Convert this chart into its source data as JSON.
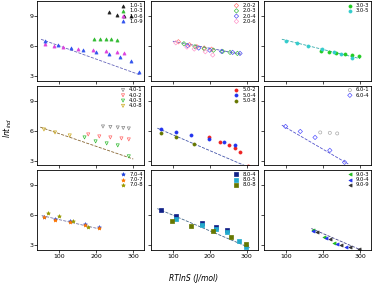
{
  "panels": [
    {
      "row": 0,
      "col": 0,
      "series": [
        {
          "label": "1.0-1",
          "color": "#222222",
          "marker": "^",
          "filled": true,
          "x": [
            235,
            255,
            275,
            295
          ],
          "y": [
            9.4,
            9.1,
            9.0,
            9.05
          ]
        },
        {
          "label": "1.0-3",
          "color": "#33bb33",
          "marker": "^",
          "filled": true,
          "x": [
            195,
            210,
            225,
            240,
            255
          ],
          "y": [
            6.75,
            6.72,
            6.7,
            6.68,
            6.65
          ]
        },
        {
          "label": "1.0-6",
          "color": "#dd44dd",
          "marker": "^",
          "filled": true,
          "x": [
            60,
            85,
            110,
            150,
            190,
            225,
            255,
            275
          ],
          "y": [
            6.2,
            6.05,
            5.9,
            5.75,
            5.65,
            5.55,
            5.45,
            5.35
          ]
        },
        {
          "label": "1.0-9",
          "color": "#3355ee",
          "marker": "^",
          "filled": true,
          "x": [
            60,
            95,
            130,
            165,
            200,
            235,
            265,
            295,
            315
          ],
          "y": [
            6.5,
            6.1,
            5.85,
            5.65,
            5.45,
            5.2,
            4.9,
            4.5,
            3.4
          ]
        },
        {
          "trend": true,
          "color": "#6666bb",
          "x": [
            50,
            320
          ],
          "y": [
            6.7,
            3.1
          ]
        }
      ],
      "xlim": [
        40,
        330
      ],
      "ylim": [
        2.5,
        10.5
      ],
      "yticks": [
        3,
        6,
        9
      ],
      "xticks": [
        100,
        200,
        300
      ],
      "show_ylabel": true,
      "show_xlabel": false
    },
    {
      "row": 0,
      "col": 1,
      "series": [
        {
          "label": "2.0-2",
          "color": "#ff7777",
          "marker": "D",
          "filled": false,
          "x": [
            115,
            145,
            165,
            185,
            205
          ],
          "y": [
            6.45,
            6.15,
            5.95,
            5.82,
            5.7
          ]
        },
        {
          "label": "2.0-3",
          "color": "#44bb44",
          "marker": "D",
          "filled": false,
          "x": [
            130,
            160,
            185,
            210,
            235,
            255,
            275
          ],
          "y": [
            6.25,
            5.95,
            5.75,
            5.6,
            5.48,
            5.38,
            5.28
          ]
        },
        {
          "label": "2.0-4",
          "color": "#5555ee",
          "marker": "D",
          "filled": false,
          "x": [
            140,
            170,
            200,
            232,
            262,
            282
          ],
          "y": [
            6.05,
            5.82,
            5.6,
            5.48,
            5.38,
            5.28
          ]
        },
        {
          "label": "2.0-6",
          "color": "#ff99cc",
          "marker": "D",
          "filled": false,
          "x": [
            108,
            138,
            158,
            188,
            208
          ],
          "y": [
            6.35,
            5.92,
            5.72,
            5.45,
            5.12
          ]
        },
        {
          "trend": true,
          "color": "#5555bb",
          "x": [
            100,
            285
          ],
          "y": [
            6.5,
            5.2
          ]
        }
      ],
      "xlim": [
        40,
        330
      ],
      "ylim": [
        2.5,
        10.5
      ],
      "yticks": [
        3,
        6,
        9
      ],
      "xticks": [
        100,
        200,
        300
      ],
      "show_ylabel": false,
      "show_xlabel": false
    },
    {
      "row": 0,
      "col": 2,
      "series": [
        {
          "label": "3.0-3",
          "color": "#22cc22",
          "marker": "o",
          "filled": true,
          "x": [
            195,
            215,
            235,
            258,
            278,
            298
          ],
          "y": [
            5.5,
            5.4,
            5.3,
            5.2,
            5.1,
            5.0
          ]
        },
        {
          "label": "3.0-5",
          "color": "#33cccc",
          "marker": "o",
          "filled": true,
          "x": [
            98,
            128,
            158,
            198,
            228,
            248,
            278
          ],
          "y": [
            6.55,
            6.32,
            6.05,
            5.72,
            5.42,
            5.22,
            4.82
          ]
        },
        {
          "trend": true,
          "color": "#33aaaa",
          "x": [
            88,
            300
          ],
          "y": [
            6.7,
            4.75
          ]
        }
      ],
      "xlim": [
        40,
        330
      ],
      "ylim": [
        2.5,
        10.5
      ],
      "yticks": [
        3,
        6,
        9
      ],
      "xticks": [
        100,
        200,
        300
      ],
      "show_ylabel": false,
      "show_xlabel": false
    },
    {
      "row": 1,
      "col": 0,
      "series": [
        {
          "label": "4.0-1",
          "color": "#888888",
          "marker": "v",
          "filled": false,
          "x": [
            218,
            238,
            258,
            273,
            288
          ],
          "y": [
            6.42,
            6.37,
            6.32,
            6.27,
            6.22
          ]
        },
        {
          "label": "4.0-2",
          "color": "#ff6666",
          "marker": "v",
          "filled": false,
          "x": [
            178,
            208,
            238,
            268,
            288
          ],
          "y": [
            5.62,
            5.42,
            5.32,
            5.22,
            5.12
          ]
        },
        {
          "label": "4.0-3",
          "color": "#33bb33",
          "marker": "v",
          "filled": false,
          "x": [
            168,
            198,
            228,
            258,
            288
          ],
          "y": [
            5.32,
            4.92,
            4.72,
            4.52,
            3.42
          ]
        },
        {
          "label": "4.0-8",
          "color": "#ccaa22",
          "marker": "v",
          "filled": false,
          "x": [
            58,
            88,
            128
          ],
          "y": [
            6.12,
            5.82,
            5.52
          ]
        },
        {
          "trend": true,
          "color": "#886633",
          "x": [
            48,
            300
          ],
          "y": [
            6.35,
            3.15
          ]
        }
      ],
      "xlim": [
        40,
        330
      ],
      "ylim": [
        2.5,
        10.5
      ],
      "yticks": [
        3,
        6,
        9
      ],
      "xticks": [
        100,
        200,
        300
      ],
      "show_ylabel": true,
      "show_xlabel": false
    },
    {
      "row": 1,
      "col": 1,
      "series": [
        {
          "label": "5.0-2",
          "color": "#ee2222",
          "marker": "o",
          "filled": true,
          "x": [
            198,
            228,
            252,
            268,
            282,
            305
          ],
          "y": [
            5.32,
            4.82,
            4.52,
            4.22,
            3.82,
            2.42
          ]
        },
        {
          "label": "5.0-4",
          "color": "#2233ee",
          "marker": "o",
          "filled": true,
          "x": [
            68,
            108,
            148,
            198,
            238,
            268
          ],
          "y": [
            6.12,
            5.82,
            5.52,
            5.12,
            4.82,
            4.52
          ]
        },
        {
          "label": "5.0-8",
          "color": "#667700",
          "marker": "o",
          "filled": true,
          "x": [
            68,
            108,
            158
          ],
          "y": [
            5.72,
            5.32,
            4.62
          ]
        },
        {
          "trend": true,
          "color": "#4455aa",
          "x": [
            58,
            310
          ],
          "y": [
            6.25,
            2.25
          ]
        }
      ],
      "xlim": [
        40,
        330
      ],
      "ylim": [
        2.5,
        10.5
      ],
      "yticks": [
        3,
        6,
        9
      ],
      "xticks": [
        100,
        200,
        300
      ],
      "show_ylabel": false,
      "show_xlabel": false
    },
    {
      "row": 1,
      "col": 2,
      "series": [
        {
          "label": "6.0-1",
          "color": "#aaaaaa",
          "marker": "o",
          "filled": false,
          "x": [
            192,
            218,
            238
          ],
          "y": [
            5.82,
            5.78,
            5.72
          ]
        },
        {
          "label": "6.0-4",
          "color": "#5555ff",
          "marker": "D",
          "filled": false,
          "x": [
            98,
            138,
            178,
            218,
            258
          ],
          "y": [
            6.42,
            5.92,
            5.32,
            4.02,
            2.82
          ]
        },
        {
          "trend": true,
          "color": "#5555cc",
          "x": [
            88,
            268
          ],
          "y": [
            6.55,
            2.65
          ]
        }
      ],
      "xlim": [
        40,
        330
      ],
      "ylim": [
        2.5,
        10.5
      ],
      "yticks": [
        3,
        6,
        9
      ],
      "xticks": [
        100,
        200,
        300
      ],
      "show_ylabel": false,
      "show_xlabel": false
    },
    {
      "row": 2,
      "col": 0,
      "series": [
        {
          "label": "7.0-4",
          "color": "#2244dd",
          "marker": "*",
          "filled": true,
          "x": [
            58,
            88,
            128,
            168,
            208
          ],
          "y": [
            5.82,
            5.62,
            5.42,
            5.12,
            4.82
          ]
        },
        {
          "label": "7.0-7",
          "color": "#ff7700",
          "marker": "*",
          "filled": true,
          "x": [
            58,
            88,
            128,
            168,
            208
          ],
          "y": [
            5.78,
            5.55,
            5.28,
            4.98,
            4.68
          ]
        },
        {
          "label": "7.0-8",
          "color": "#999900",
          "marker": "*",
          "filled": true,
          "x": [
            68,
            98,
            138,
            178
          ],
          "y": [
            6.22,
            5.92,
            5.42,
            4.82
          ]
        },
        {
          "trend": true,
          "color": "#7777aa",
          "x": [
            52,
            215
          ],
          "y": [
            5.95,
            4.55
          ]
        }
      ],
      "xlim": [
        40,
        330
      ],
      "ylim": [
        2.5,
        10.5
      ],
      "yticks": [
        3,
        6,
        9
      ],
      "xticks": [
        100,
        200,
        300
      ],
      "show_ylabel": true,
      "show_xlabel": true
    },
    {
      "row": 2,
      "col": 1,
      "series": [
        {
          "label": "8.0-4",
          "color": "#112288",
          "marker": "s",
          "filled": true,
          "x": [
            68,
            108,
            178,
            218,
            248
          ],
          "y": [
            6.52,
            5.92,
            5.22,
            4.82,
            4.52
          ]
        },
        {
          "label": "8.0-5",
          "color": "#22aacc",
          "marker": "s",
          "filled": true,
          "x": [
            108,
            178,
            218,
            248,
            278,
            298
          ],
          "y": [
            5.62,
            5.02,
            4.62,
            4.32,
            3.42,
            2.82
          ]
        },
        {
          "label": "8.0-8",
          "color": "#667700",
          "marker": "s",
          "filled": true,
          "x": [
            98,
            148,
            208,
            258,
            298
          ],
          "y": [
            5.42,
            4.92,
            4.42,
            3.82,
            3.12
          ]
        },
        {
          "trend": true,
          "color": "#446688",
          "x": [
            58,
            308
          ],
          "y": [
            6.65,
            2.72
          ]
        }
      ],
      "xlim": [
        40,
        330
      ],
      "ylim": [
        2.5,
        10.5
      ],
      "yticks": [
        3,
        6,
        9
      ],
      "xticks": [
        100,
        200,
        300
      ],
      "show_ylabel": false,
      "show_xlabel": true
    },
    {
      "row": 2,
      "col": 2,
      "series": [
        {
          "label": "9.0-3",
          "color": "#22bb22",
          "marker": "<",
          "filled": true,
          "x": [
            173,
            203,
            228
          ],
          "y": [
            4.52,
            3.82,
            3.22
          ]
        },
        {
          "label": "9.0-4",
          "color": "#2233ee",
          "marker": "<",
          "filled": true,
          "x": [
            173,
            208,
            238,
            263
          ],
          "y": [
            4.42,
            3.72,
            3.12,
            2.82
          ]
        },
        {
          "label": "9.0-9",
          "color": "#333333",
          "marker": "<",
          "filled": true,
          "x": [
            183,
            218,
            248,
            273,
            298
          ],
          "y": [
            4.32,
            3.62,
            3.02,
            2.82,
            2.62
          ]
        },
        {
          "trend": true,
          "color": "#444488",
          "x": [
            168,
            305
          ],
          "y": [
            4.65,
            2.45
          ]
        }
      ],
      "xlim": [
        40,
        330
      ],
      "ylim": [
        2.5,
        10.5
      ],
      "yticks": [
        3,
        6,
        9
      ],
      "xticks": [
        100,
        200,
        300
      ],
      "show_ylabel": false,
      "show_xlabel": true
    }
  ],
  "ylabel": "lnt$_{ind}$",
  "xlabel": "RTlnS (J/mol)",
  "figure_bg": "#ffffff"
}
